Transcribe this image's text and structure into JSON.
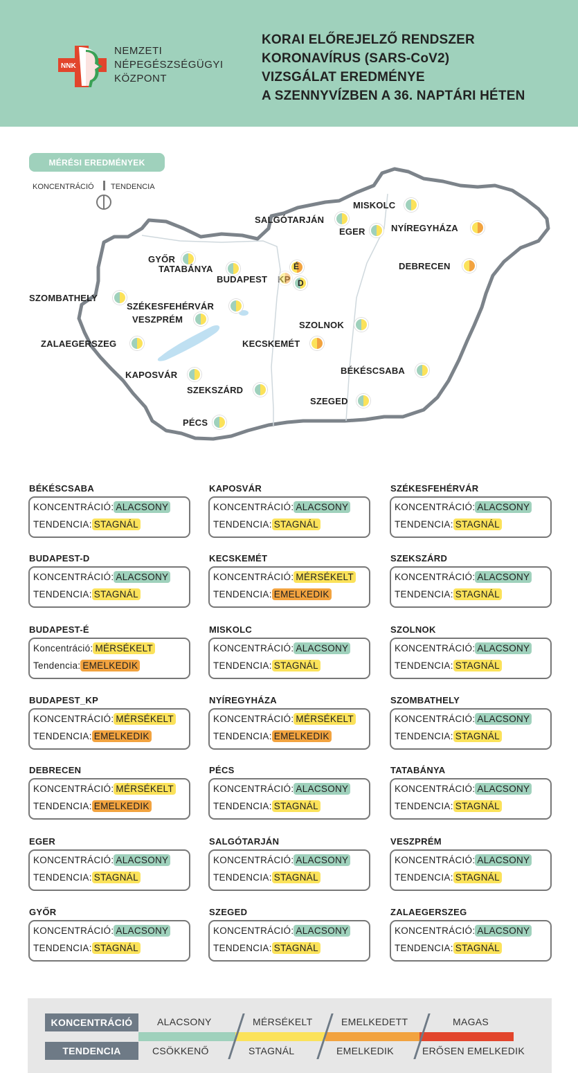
{
  "header": {
    "logo_text": "NNK",
    "org_lines": [
      "NEMZETI",
      "NÉPEGÉSZSÉGÜGYI",
      "KÖZPONT"
    ],
    "title_lines": [
      "KORAI ELŐREJELZŐ RENDSZER",
      "KORONAVÍRUS (SARS-CoV2)",
      "VIZSGÁLAT EREDMÉNYE",
      "A SZENNYVÍZBEN A 36. NAPTÁRI HÉTEN"
    ]
  },
  "map_legend": {
    "section_label": "MÉRÉSI EREDMÉNYEK",
    "concentration": "KONCENTRÁCIÓ",
    "tendency": "TENDENCIA"
  },
  "colors": {
    "green": "#9fd1bc",
    "yellow": "#fbe25a",
    "orange": "#f2a33f",
    "red": "#e2452c",
    "header_bg": "#9fd1bc",
    "map_outline": "#7c838a"
  },
  "map_cities": [
    {
      "name": "MISKOLC",
      "conc": "green",
      "tend": "yellow"
    },
    {
      "name": "SALGÓTARJÁN",
      "conc": "green",
      "tend": "yellow"
    },
    {
      "name": "EGER",
      "conc": "green",
      "tend": "yellow"
    },
    {
      "name": "NYÍREGYHÁZA",
      "conc": "yellow",
      "tend": "orange"
    },
    {
      "name": "GYŐR",
      "conc": "green",
      "tend": "yellow"
    },
    {
      "name": "TATABÁNYA",
      "conc": "green",
      "tend": "yellow"
    },
    {
      "name": "BUDAPEST",
      "conc": "",
      "tend": ""
    },
    {
      "name": "KP",
      "conc": "yellow",
      "tend": "orange"
    },
    {
      "name": "É",
      "conc": "yellow",
      "tend": "orange"
    },
    {
      "name": "D",
      "conc": "green",
      "tend": "yellow"
    },
    {
      "name": "DEBRECEN",
      "conc": "yellow",
      "tend": "orange"
    },
    {
      "name": "SZOMBATHELY",
      "conc": "green",
      "tend": "yellow"
    },
    {
      "name": "SZÉKESFEHÉRVÁR",
      "conc": "green",
      "tend": "yellow"
    },
    {
      "name": "VESZPRÉM",
      "conc": "green",
      "tend": "yellow"
    },
    {
      "name": "SZOLNOK",
      "conc": "green",
      "tend": "yellow"
    },
    {
      "name": "ZALAEGERSZEG",
      "conc": "green",
      "tend": "yellow"
    },
    {
      "name": "KECSKEMÉT",
      "conc": "yellow",
      "tend": "orange"
    },
    {
      "name": "BÉKÉSCSABA",
      "conc": "green",
      "tend": "yellow"
    },
    {
      "name": "KAPOSVÁR",
      "conc": "green",
      "tend": "yellow"
    },
    {
      "name": "SZEKSZÁRD",
      "conc": "green",
      "tend": "yellow"
    },
    {
      "name": "SZEGED",
      "conc": "green",
      "tend": "yellow"
    },
    {
      "name": "PÉCS",
      "conc": "green",
      "tend": "yellow"
    }
  ],
  "cards": {
    "conc_label": "KONCENTRÁCIÓ:",
    "conc_label_alt": "Koncentráció:",
    "tend_label": "TENDENCIA:",
    "tend_label_alt": "Tendencia:",
    "items": [
      {
        "name": "BÉKÉSCSABA",
        "conc": "ALACSONY",
        "conc_color": "green",
        "tend": "STAGNÁL",
        "tend_color": "yellow",
        "label_case": "upper"
      },
      {
        "name": "KAPOSVÁR",
        "conc": "ALACSONY",
        "conc_color": "green",
        "tend": "STAGNÁL",
        "tend_color": "yellow",
        "label_case": "upper"
      },
      {
        "name": "SZÉKESFEHÉRVÁR",
        "conc": "ALACSONY",
        "conc_color": "green",
        "tend": "STAGNÁL",
        "tend_color": "yellow",
        "label_case": "upper"
      },
      {
        "name": "BUDAPEST-D",
        "conc": "ALACSONY",
        "conc_color": "green",
        "tend": "STAGNÁL",
        "tend_color": "yellow",
        "label_case": "upper"
      },
      {
        "name": "KECSKEMÉT",
        "conc": "MÉRSÉKELT",
        "conc_color": "yellow",
        "tend": "EMELKEDIK",
        "tend_color": "orange",
        "label_case": "upper"
      },
      {
        "name": "SZEKSZÁRD",
        "conc": "ALACSONY",
        "conc_color": "green",
        "tend": "STAGNÁL",
        "tend_color": "yellow",
        "label_case": "upper"
      },
      {
        "name": "BUDAPEST-É",
        "conc": "MÉRSÉKELT",
        "conc_color": "yellow",
        "tend": "EMELKEDIK",
        "tend_color": "orange",
        "label_case": "title"
      },
      {
        "name": "MISKOLC",
        "conc": "ALACSONY",
        "conc_color": "green",
        "tend": "STAGNÁL",
        "tend_color": "yellow",
        "label_case": "upper"
      },
      {
        "name": "SZOLNOK",
        "conc": "ALACSONY",
        "conc_color": "green",
        "tend": "STAGNÁL",
        "tend_color": "yellow",
        "label_case": "upper"
      },
      {
        "name": "BUDAPEST_KP",
        "conc": "MÉRSÉKELT",
        "conc_color": "yellow",
        "tend": "EMELKEDIK",
        "tend_color": "orange",
        "label_case": "upper"
      },
      {
        "name": "NYÍREGYHÁZA",
        "conc": "MÉRSÉKELT",
        "conc_color": "yellow",
        "tend": "EMELKEDIK",
        "tend_color": "orange",
        "label_case": "upper"
      },
      {
        "name": "SZOMBATHELY",
        "conc": "ALACSONY",
        "conc_color": "green",
        "tend": "STAGNÁL",
        "tend_color": "yellow",
        "label_case": "upper"
      },
      {
        "name": "DEBRECEN",
        "conc": "MÉRSÉKELT",
        "conc_color": "yellow",
        "tend": "EMELKEDIK",
        "tend_color": "orange",
        "label_case": "upper"
      },
      {
        "name": "PÉCS",
        "conc": "ALACSONY",
        "conc_color": "green",
        "tend": "STAGNÁL",
        "tend_color": "yellow",
        "label_case": "upper"
      },
      {
        "name": "TATABÁNYA",
        "conc": "ALACSONY",
        "conc_color": "green",
        "tend": "STAGNÁL",
        "tend_color": "yellow",
        "label_case": "upper"
      },
      {
        "name": "EGER",
        "conc": "ALACSONY",
        "conc_color": "green",
        "tend": "STAGNÁL",
        "tend_color": "yellow",
        "label_case": "upper"
      },
      {
        "name": "SALGÓTARJÁN",
        "conc": "ALACSONY",
        "conc_color": "green",
        "tend": "STAGNÁL",
        "tend_color": "yellow",
        "label_case": "upper"
      },
      {
        "name": "VESZPRÉM",
        "conc": "ALACSONY",
        "conc_color": "green",
        "tend": "STAGNÁL",
        "tend_color": "yellow",
        "label_case": "upper"
      },
      {
        "name": "GYŐR",
        "conc": "ALACSONY",
        "conc_color": "green",
        "tend": "STAGNÁL",
        "tend_color": "yellow",
        "label_case": "upper"
      },
      {
        "name": "SZEGED",
        "conc": "ALACSONY",
        "conc_color": "green",
        "tend": "STAGNÁL",
        "tend_color": "yellow",
        "label_case": "upper"
      },
      {
        "name": "ZALAEGERSZEG",
        "conc": "ALACSONY",
        "conc_color": "green",
        "tend": "STAGNÁL",
        "tend_color": "yellow",
        "label_case": "upper"
      }
    ]
  },
  "footer_legend": {
    "conc_label": "KONCENTRÁCIÓ",
    "tend_label": "TENDENCIA",
    "levels": [
      {
        "conc": "ALACSONY",
        "tend": "CSÖKKENŐ",
        "color": "green"
      },
      {
        "conc": "MÉRSÉKELT",
        "tend": "STAGNÁL",
        "color": "yellow"
      },
      {
        "conc": "EMELKEDETT",
        "tend": "EMELKEDIK",
        "color": "orange"
      },
      {
        "conc": "MAGAS",
        "tend": "ERŐSEN EMELKEDIK",
        "color": "red"
      }
    ]
  }
}
